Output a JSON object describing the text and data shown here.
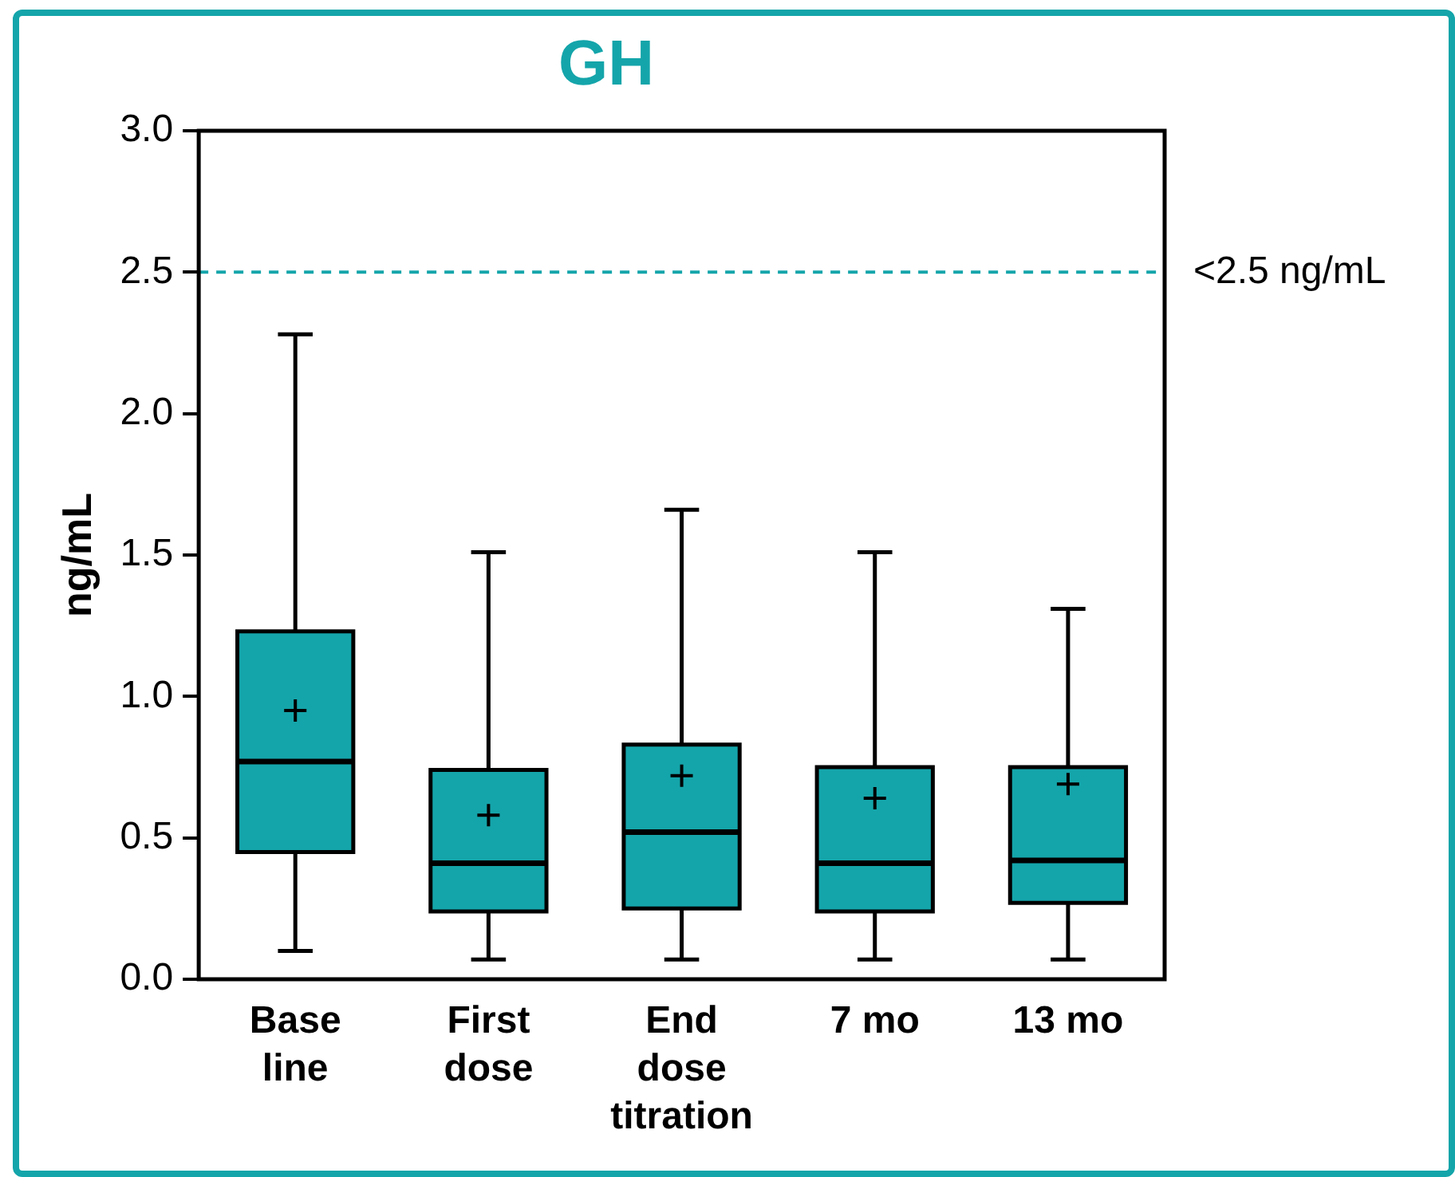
{
  "chart_data": {
    "type": "box",
    "title": "GH",
    "ylabel": "ng/mL",
    "categories": [
      "Base\nline",
      "First\ndose",
      "End\ndose\ntitration",
      "7 mo",
      "13 mo"
    ],
    "color": "#14a5aa",
    "boxes": [
      {
        "low": 0.1,
        "q1": 0.45,
        "median": 0.77,
        "q3": 1.23,
        "high": 2.28,
        "mean": 0.95
      },
      {
        "low": 0.07,
        "q1": 0.24,
        "median": 0.41,
        "q3": 0.74,
        "high": 1.51,
        "mean": 0.58
      },
      {
        "low": 0.07,
        "q1": 0.25,
        "median": 0.52,
        "q3": 0.83,
        "high": 1.66,
        "mean": 0.72
      },
      {
        "low": 0.07,
        "q1": 0.24,
        "median": 0.41,
        "q3": 0.75,
        "high": 1.51,
        "mean": 0.64
      },
      {
        "low": 0.07,
        "q1": 0.27,
        "median": 0.42,
        "q3": 0.75,
        "high": 1.31,
        "mean": 0.69
      }
    ],
    "ylim": [
      0,
      3
    ],
    "yticks": [
      {
        "value": 0,
        "label": "0.0"
      },
      0.5,
      {
        "value": 1,
        "label": "1.0"
      },
      1.5,
      {
        "value": 2,
        "label": "2.0"
      },
      2.5,
      {
        "value": 3,
        "label": "3.0"
      }
    ],
    "ref_lines": [
      {
        "axis": "y",
        "value": 2.5,
        "label": "<2.5 ng/mL",
        "color": "#14a5aa",
        "line_style": "dashed"
      }
    ],
    "grid": false,
    "legend": false
  }
}
